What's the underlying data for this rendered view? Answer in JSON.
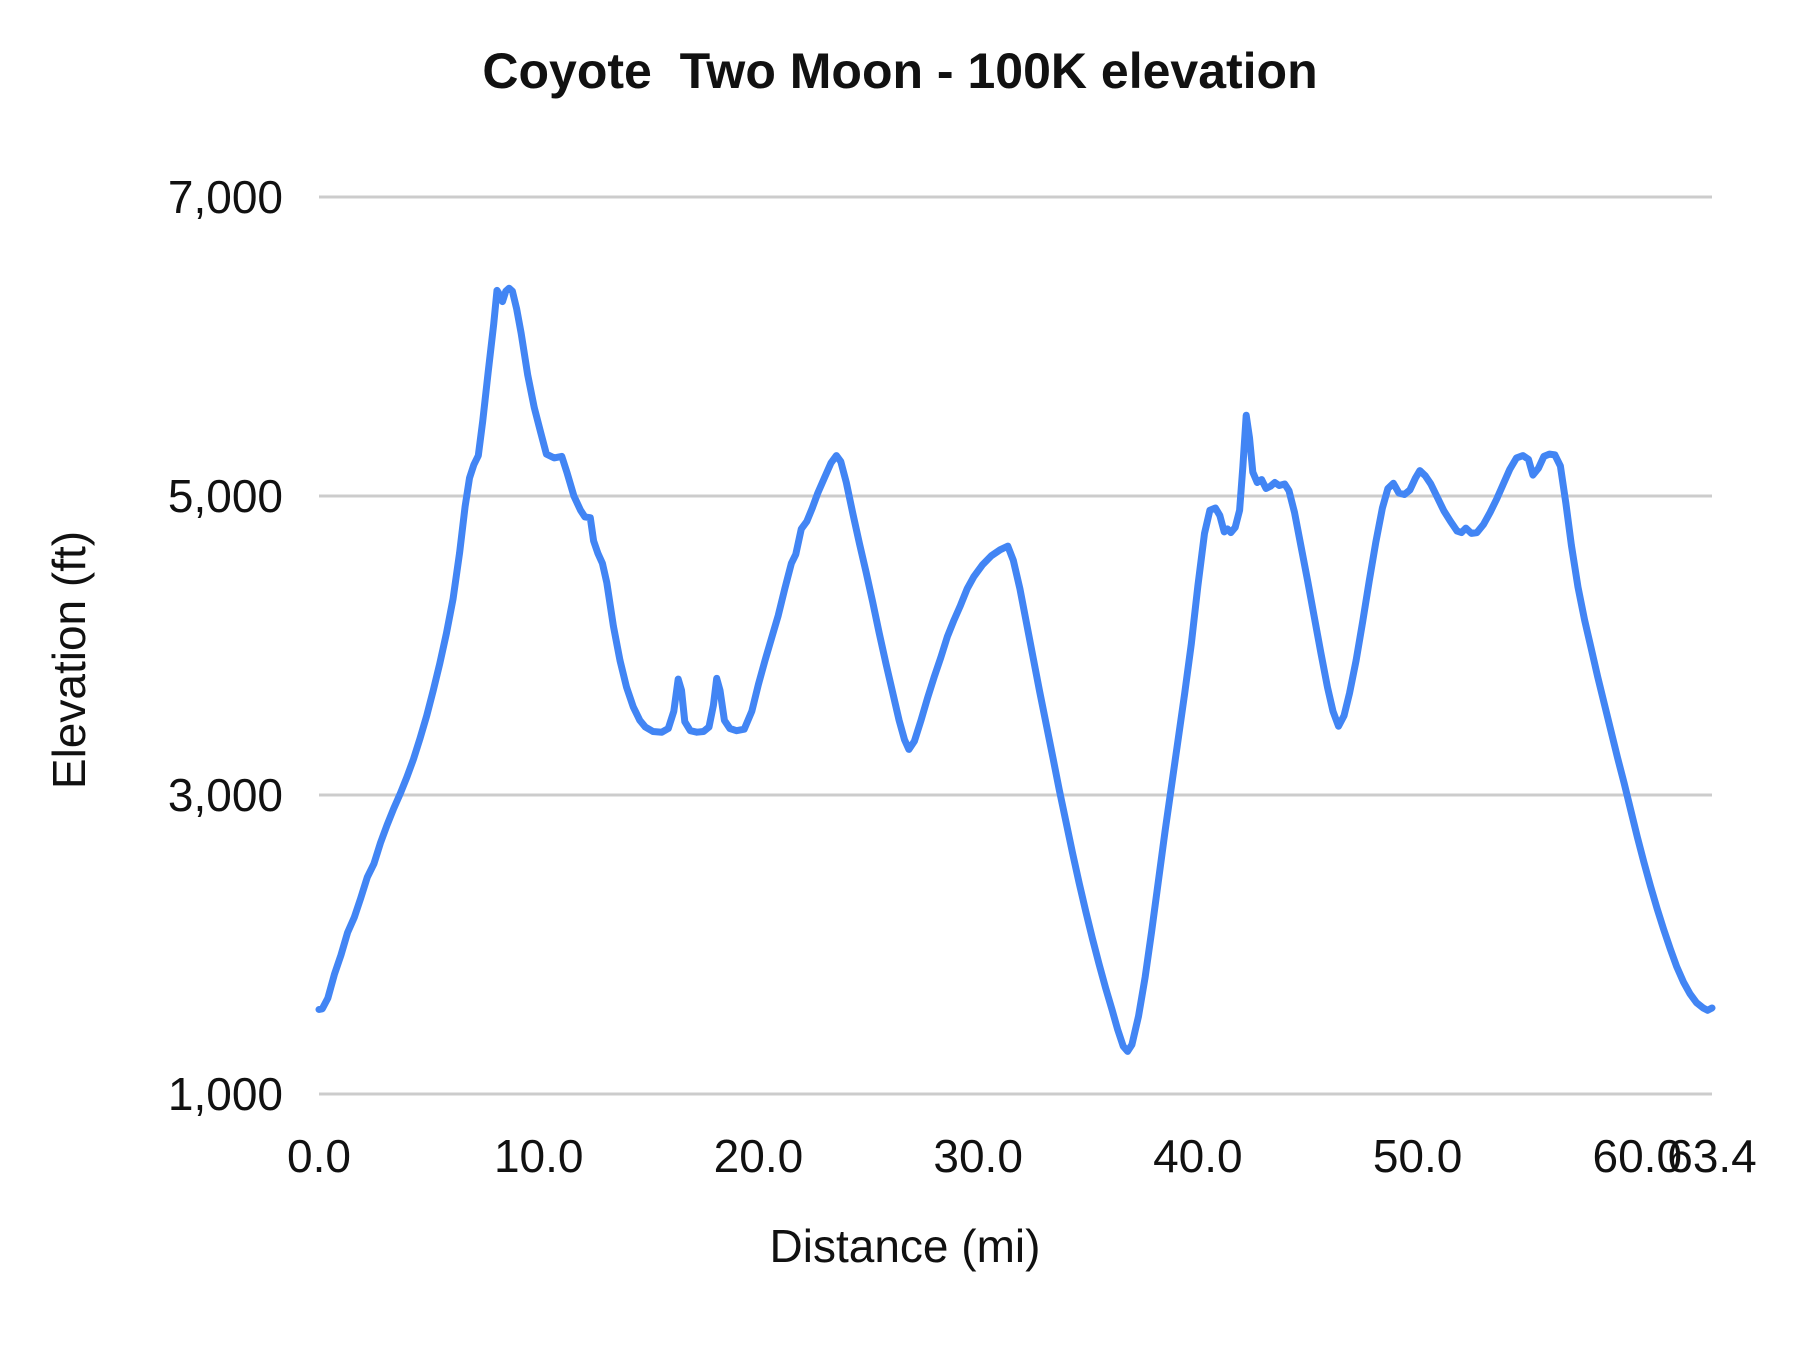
{
  "chart_data": {
    "type": "line",
    "title": "Coyote  Two Moon - 100K elevation",
    "xlabel": "Distance (mi)",
    "ylabel": "Elevation (ft)",
    "xlim": [
      0,
      63.4
    ],
    "ylim": [
      1000,
      7000
    ],
    "grid": "horizontal",
    "legend": "none",
    "colors": {
      "line": "#4285f4",
      "gridline": "#cccccc",
      "text": "#111111",
      "background": "#ffffff"
    },
    "x_ticks": [
      {
        "value": 0,
        "label": "0.0"
      },
      {
        "value": 10,
        "label": "10.0"
      },
      {
        "value": 20,
        "label": "20.0"
      },
      {
        "value": 30,
        "label": "30.0"
      },
      {
        "value": 40,
        "label": "40.0"
      },
      {
        "value": 50,
        "label": "50.0"
      },
      {
        "value": 60,
        "label": "60.0"
      },
      {
        "value": 63.4,
        "label": "63.4"
      }
    ],
    "y_ticks": [
      {
        "value": 1000,
        "label": "1,000"
      },
      {
        "value": 3000,
        "label": "3,000"
      },
      {
        "value": 5000,
        "label": "5,000"
      },
      {
        "value": 7000,
        "label": "7,000"
      }
    ],
    "series": [
      {
        "name": "elevation",
        "points": [
          [
            0.0,
            1565
          ],
          [
            0.15,
            1570
          ],
          [
            0.4,
            1640
          ],
          [
            0.7,
            1800
          ],
          [
            1.0,
            1930
          ],
          [
            1.3,
            2080
          ],
          [
            1.6,
            2180
          ],
          [
            1.9,
            2310
          ],
          [
            2.2,
            2450
          ],
          [
            2.5,
            2540
          ],
          [
            2.8,
            2680
          ],
          [
            3.1,
            2800
          ],
          [
            3.4,
            2910
          ],
          [
            3.7,
            3010
          ],
          [
            4.0,
            3120
          ],
          [
            4.3,
            3240
          ],
          [
            4.6,
            3380
          ],
          [
            4.9,
            3530
          ],
          [
            5.2,
            3700
          ],
          [
            5.5,
            3880
          ],
          [
            5.8,
            4080
          ],
          [
            6.1,
            4310
          ],
          [
            6.4,
            4620
          ],
          [
            6.65,
            4930
          ],
          [
            6.85,
            5120
          ],
          [
            7.05,
            5210
          ],
          [
            7.25,
            5270
          ],
          [
            7.45,
            5500
          ],
          [
            7.7,
            5830
          ],
          [
            7.95,
            6150
          ],
          [
            8.1,
            6375
          ],
          [
            8.25,
            6340
          ],
          [
            8.35,
            6300
          ],
          [
            8.5,
            6370
          ],
          [
            8.65,
            6390
          ],
          [
            8.8,
            6370
          ],
          [
            9.0,
            6250
          ],
          [
            9.2,
            6090
          ],
          [
            9.5,
            5810
          ],
          [
            9.8,
            5590
          ],
          [
            10.1,
            5420
          ],
          [
            10.35,
            5280
          ],
          [
            10.7,
            5255
          ],
          [
            11.05,
            5265
          ],
          [
            11.3,
            5150
          ],
          [
            11.6,
            5000
          ],
          [
            11.9,
            4905
          ],
          [
            12.1,
            4860
          ],
          [
            12.35,
            4855
          ],
          [
            12.5,
            4700
          ],
          [
            12.7,
            4615
          ],
          [
            12.9,
            4550
          ],
          [
            13.1,
            4420
          ],
          [
            13.4,
            4130
          ],
          [
            13.7,
            3900
          ],
          [
            14.0,
            3720
          ],
          [
            14.3,
            3590
          ],
          [
            14.6,
            3500
          ],
          [
            14.85,
            3455
          ],
          [
            15.2,
            3425
          ],
          [
            15.6,
            3420
          ],
          [
            15.9,
            3445
          ],
          [
            16.15,
            3560
          ],
          [
            16.35,
            3775
          ],
          [
            16.5,
            3700
          ],
          [
            16.65,
            3490
          ],
          [
            16.9,
            3430
          ],
          [
            17.2,
            3420
          ],
          [
            17.5,
            3425
          ],
          [
            17.75,
            3455
          ],
          [
            17.95,
            3600
          ],
          [
            18.1,
            3780
          ],
          [
            18.25,
            3700
          ],
          [
            18.45,
            3500
          ],
          [
            18.7,
            3445
          ],
          [
            19.0,
            3430
          ],
          [
            19.35,
            3440
          ],
          [
            19.7,
            3560
          ],
          [
            20.0,
            3740
          ],
          [
            20.3,
            3900
          ],
          [
            20.6,
            4050
          ],
          [
            20.9,
            4200
          ],
          [
            21.2,
            4380
          ],
          [
            21.5,
            4550
          ],
          [
            21.7,
            4610
          ],
          [
            21.95,
            4780
          ],
          [
            22.2,
            4830
          ],
          [
            22.45,
            4920
          ],
          [
            22.7,
            5020
          ],
          [
            23.0,
            5120
          ],
          [
            23.3,
            5220
          ],
          [
            23.55,
            5270
          ],
          [
            23.75,
            5230
          ],
          [
            24.0,
            5090
          ],
          [
            24.3,
            4880
          ],
          [
            24.6,
            4680
          ],
          [
            24.9,
            4490
          ],
          [
            25.2,
            4290
          ],
          [
            25.5,
            4080
          ],
          [
            25.8,
            3880
          ],
          [
            26.1,
            3690
          ],
          [
            26.4,
            3500
          ],
          [
            26.65,
            3370
          ],
          [
            26.85,
            3305
          ],
          [
            27.1,
            3360
          ],
          [
            27.4,
            3500
          ],
          [
            27.7,
            3650
          ],
          [
            28.0,
            3790
          ],
          [
            28.3,
            3920
          ],
          [
            28.6,
            4060
          ],
          [
            28.9,
            4170
          ],
          [
            29.2,
            4270
          ],
          [
            29.5,
            4380
          ],
          [
            29.8,
            4460
          ],
          [
            30.2,
            4540
          ],
          [
            30.6,
            4600
          ],
          [
            31.0,
            4640
          ],
          [
            31.35,
            4665
          ],
          [
            31.6,
            4570
          ],
          [
            31.9,
            4380
          ],
          [
            32.2,
            4150
          ],
          [
            32.5,
            3920
          ],
          [
            32.8,
            3690
          ],
          [
            33.1,
            3470
          ],
          [
            33.4,
            3250
          ],
          [
            33.7,
            3030
          ],
          [
            34.0,
            2820
          ],
          [
            34.3,
            2610
          ],
          [
            34.6,
            2410
          ],
          [
            34.9,
            2220
          ],
          [
            35.2,
            2040
          ],
          [
            35.5,
            1870
          ],
          [
            35.8,
            1710
          ],
          [
            36.1,
            1560
          ],
          [
            36.35,
            1430
          ],
          [
            36.6,
            1320
          ],
          [
            36.8,
            1285
          ],
          [
            37.0,
            1330
          ],
          [
            37.3,
            1520
          ],
          [
            37.6,
            1780
          ],
          [
            37.9,
            2090
          ],
          [
            38.2,
            2420
          ],
          [
            38.5,
            2750
          ],
          [
            38.8,
            3060
          ],
          [
            39.1,
            3370
          ],
          [
            39.4,
            3680
          ],
          [
            39.7,
            4010
          ],
          [
            40.0,
            4400
          ],
          [
            40.3,
            4750
          ],
          [
            40.55,
            4905
          ],
          [
            40.8,
            4920
          ],
          [
            41.0,
            4870
          ],
          [
            41.2,
            4760
          ],
          [
            41.35,
            4780
          ],
          [
            41.5,
            4755
          ],
          [
            41.7,
            4790
          ],
          [
            41.9,
            4905
          ],
          [
            42.05,
            5200
          ],
          [
            42.2,
            5540
          ],
          [
            42.35,
            5390
          ],
          [
            42.5,
            5160
          ],
          [
            42.7,
            5090
          ],
          [
            42.9,
            5110
          ],
          [
            43.1,
            5050
          ],
          [
            43.3,
            5065
          ],
          [
            43.5,
            5090
          ],
          [
            43.7,
            5070
          ],
          [
            43.95,
            5080
          ],
          [
            44.15,
            5035
          ],
          [
            44.4,
            4890
          ],
          [
            44.7,
            4660
          ],
          [
            45.0,
            4430
          ],
          [
            45.3,
            4190
          ],
          [
            45.6,
            3950
          ],
          [
            45.9,
            3720
          ],
          [
            46.15,
            3560
          ],
          [
            46.4,
            3460
          ],
          [
            46.65,
            3530
          ],
          [
            46.9,
            3680
          ],
          [
            47.2,
            3900
          ],
          [
            47.5,
            4160
          ],
          [
            47.8,
            4430
          ],
          [
            48.1,
            4690
          ],
          [
            48.4,
            4920
          ],
          [
            48.65,
            5050
          ],
          [
            48.9,
            5085
          ],
          [
            49.15,
            5020
          ],
          [
            49.4,
            5010
          ],
          [
            49.65,
            5040
          ],
          [
            49.9,
            5120
          ],
          [
            50.1,
            5170
          ],
          [
            50.35,
            5135
          ],
          [
            50.6,
            5080
          ],
          [
            50.9,
            4990
          ],
          [
            51.2,
            4900
          ],
          [
            51.5,
            4830
          ],
          [
            51.8,
            4765
          ],
          [
            52.0,
            4755
          ],
          [
            52.2,
            4785
          ],
          [
            52.45,
            4750
          ],
          [
            52.7,
            4755
          ],
          [
            53.0,
            4810
          ],
          [
            53.3,
            4890
          ],
          [
            53.6,
            4980
          ],
          [
            53.9,
            5080
          ],
          [
            54.2,
            5180
          ],
          [
            54.5,
            5255
          ],
          [
            54.8,
            5270
          ],
          [
            55.05,
            5245
          ],
          [
            55.25,
            5140
          ],
          [
            55.5,
            5185
          ],
          [
            55.75,
            5265
          ],
          [
            56.0,
            5280
          ],
          [
            56.25,
            5275
          ],
          [
            56.5,
            5200
          ],
          [
            56.75,
            4950
          ],
          [
            57.0,
            4670
          ],
          [
            57.3,
            4390
          ],
          [
            57.6,
            4170
          ],
          [
            57.9,
            3980
          ],
          [
            58.2,
            3790
          ],
          [
            58.5,
            3610
          ],
          [
            58.8,
            3430
          ],
          [
            59.1,
            3250
          ],
          [
            59.4,
            3080
          ],
          [
            59.7,
            2900
          ],
          [
            60.0,
            2720
          ],
          [
            60.3,
            2550
          ],
          [
            60.6,
            2390
          ],
          [
            60.9,
            2240
          ],
          [
            61.2,
            2100
          ],
          [
            61.5,
            1970
          ],
          [
            61.8,
            1850
          ],
          [
            62.1,
            1750
          ],
          [
            62.4,
            1670
          ],
          [
            62.7,
            1610
          ],
          [
            63.0,
            1575
          ],
          [
            63.2,
            1560
          ],
          [
            63.4,
            1575
          ]
        ]
      }
    ]
  }
}
